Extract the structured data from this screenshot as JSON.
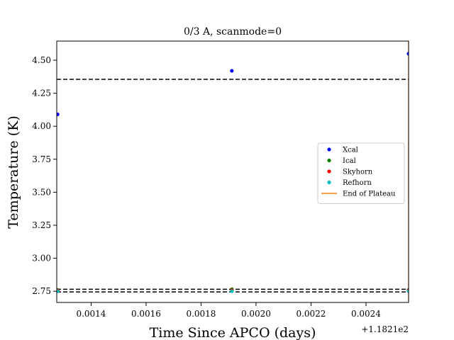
{
  "chart_data": {
    "type": "scatter",
    "title": "0/3 A, scanmode=0",
    "xlabel": "Time Since APCO (days)",
    "ylabel": "Temperature (K)",
    "x_offset_label": "+1.1821e2",
    "xlim": [
      0.001275,
      0.002555
    ],
    "ylim": [
      2.665,
      4.645
    ],
    "x_ticks": [
      0.0014,
      0.0016,
      0.0018,
      0.002,
      0.0022,
      0.0024
    ],
    "x_tick_labels": [
      "0.0014",
      "0.0016",
      "0.0018",
      "0.0020",
      "0.0022",
      "0.0024"
    ],
    "y_ticks": [
      2.75,
      3.0,
      3.25,
      3.5,
      3.75,
      4.0,
      4.25,
      4.5
    ],
    "y_tick_labels": [
      "2.75",
      "3.00",
      "3.25",
      "3.50",
      "3.75",
      "4.00",
      "4.25",
      "4.50"
    ],
    "series": [
      {
        "name": "Xcal",
        "color": "#0000ff",
        "marker": "dot",
        "points": [
          [
            0.001278,
            4.09
          ],
          [
            0.001912,
            4.42
          ],
          [
            0.002555,
            4.55
          ]
        ]
      },
      {
        "name": "Ical",
        "color": "#008000",
        "marker": "dot",
        "points": [
          [
            0.001278,
            2.76
          ],
          [
            0.001912,
            2.765
          ],
          [
            0.002555,
            2.76
          ]
        ]
      },
      {
        "name": "Skyhorn",
        "color": "#ff0000",
        "marker": "dot",
        "points": [
          [
            0.001278,
            2.755
          ],
          [
            0.001912,
            2.757
          ],
          [
            0.002555,
            2.755
          ]
        ]
      },
      {
        "name": "Refhorn",
        "color": "#00bfbf",
        "marker": "dot",
        "points": [
          [
            0.001278,
            2.75
          ],
          [
            0.001912,
            2.75
          ],
          [
            0.002555,
            2.75
          ]
        ]
      },
      {
        "name": "End of Plateau",
        "color": "#ff7f0e",
        "marker": "line",
        "vline_x": 0.002555
      }
    ],
    "hlines": [
      {
        "y": 4.355,
        "color": "#000000",
        "style": "dashed"
      },
      {
        "y": 2.765,
        "color": "#000000",
        "style": "dashed"
      },
      {
        "y": 2.745,
        "color": "#000000",
        "style": "dashed"
      }
    ],
    "grid": false,
    "legend_position": "center-right"
  }
}
